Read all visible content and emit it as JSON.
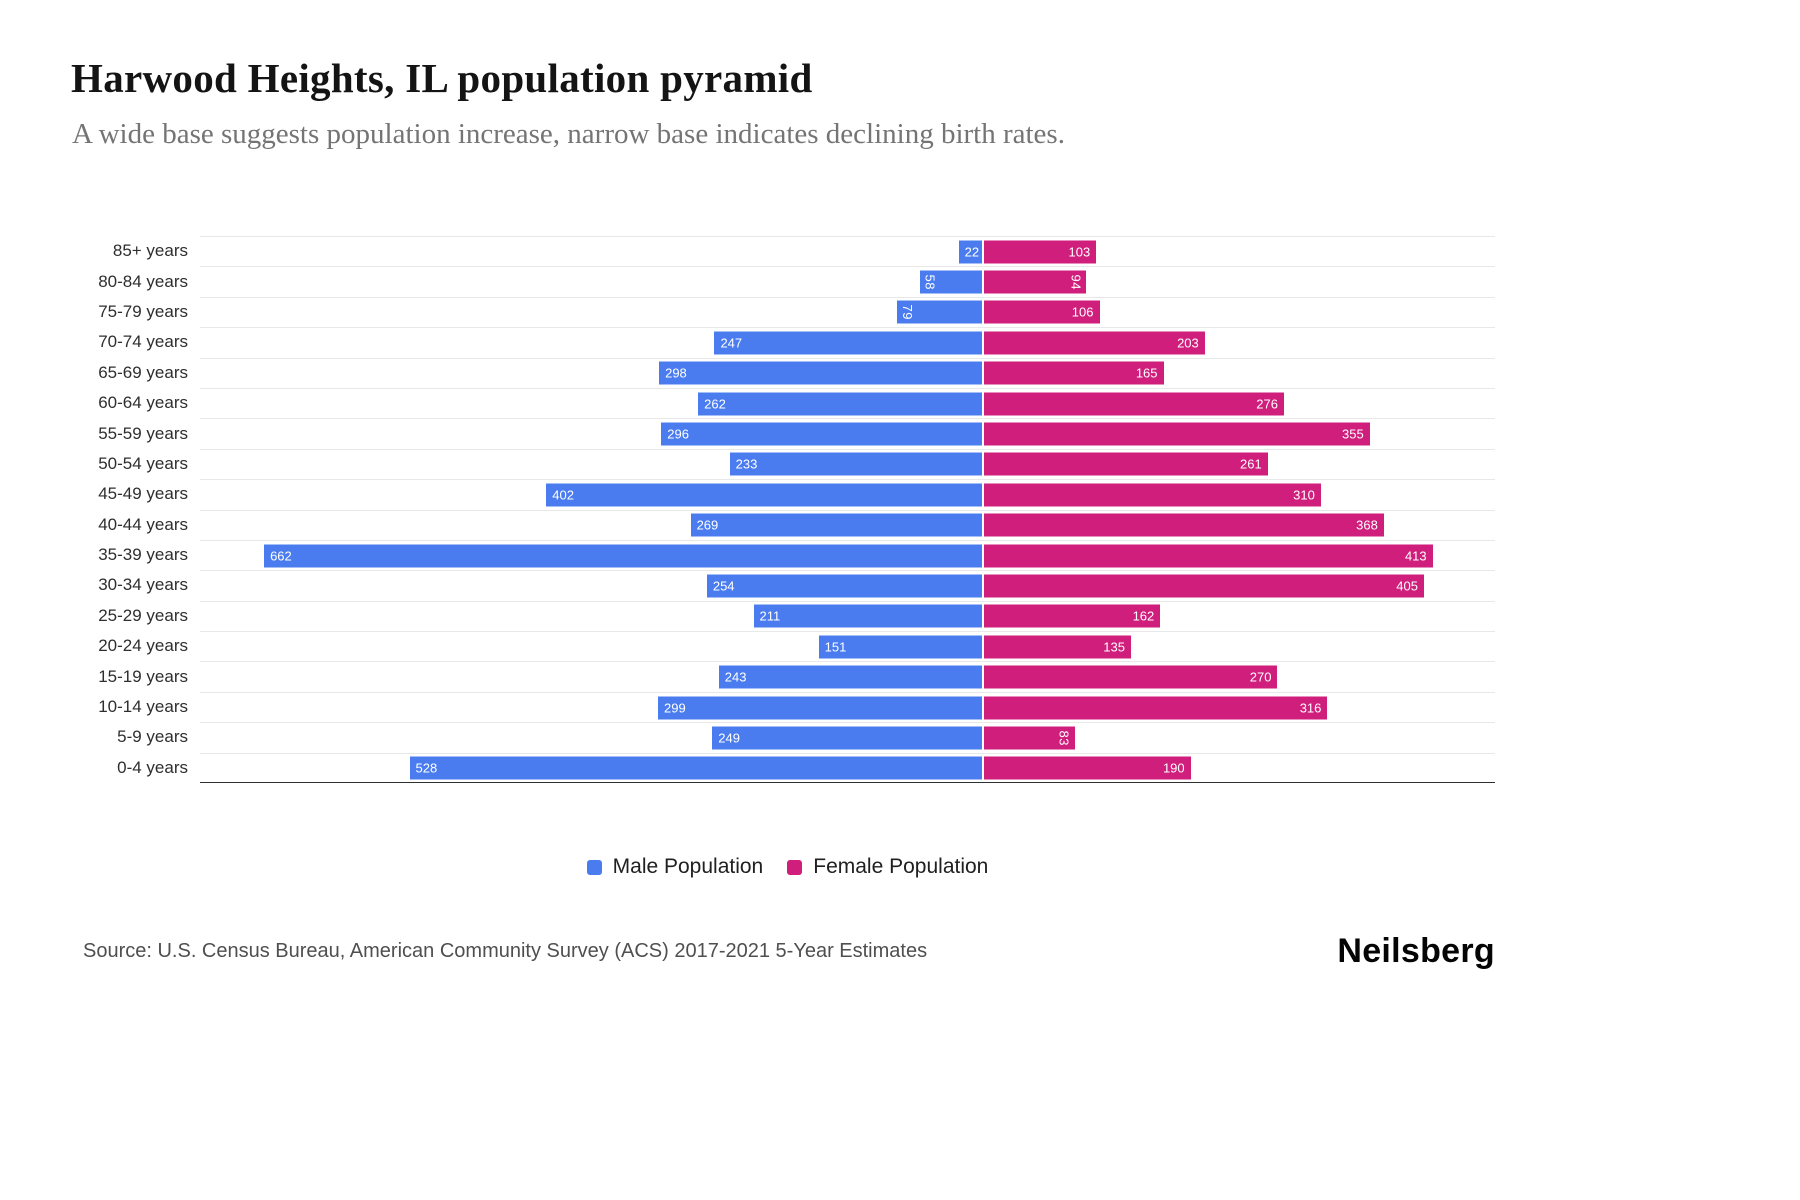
{
  "header": {
    "title": "Harwood Heights, IL population pyramid",
    "subtitle": "A wide base suggests population increase, narrow base indicates declining birth rates."
  },
  "chart_data": {
    "type": "bar",
    "variant": "population-pyramid",
    "orientation": "horizontal",
    "grid": true,
    "legend_position": "bottom",
    "title": "Harwood Heights, IL population pyramid",
    "xlabel": "",
    "ylabel": "",
    "categories": [
      "85+ years",
      "80-84 years",
      "75-79 years",
      "70-74 years",
      "65-69 years",
      "60-64 years",
      "55-59 years",
      "50-54 years",
      "45-49 years",
      "40-44 years",
      "35-39 years",
      "30-34 years",
      "25-29 years",
      "20-24 years",
      "15-19 years",
      "10-14 years",
      "5-9 years",
      "0-4 years"
    ],
    "series": [
      {
        "name": "Male Population",
        "side": "left",
        "color": "#4a7cf0",
        "values": [
          22,
          58,
          79,
          247,
          298,
          262,
          296,
          233,
          402,
          269,
          662,
          254,
          211,
          151,
          243,
          299,
          249,
          528
        ],
        "label_rotated": [
          false,
          true,
          true,
          false,
          false,
          false,
          false,
          false,
          false,
          false,
          false,
          false,
          false,
          false,
          false,
          false,
          false,
          false
        ]
      },
      {
        "name": "Female Population",
        "side": "right",
        "color": "#d01e7c",
        "values": [
          103,
          94,
          106,
          203,
          165,
          276,
          355,
          261,
          310,
          368,
          413,
          405,
          162,
          135,
          270,
          316,
          83,
          190
        ],
        "label_rotated": [
          false,
          true,
          false,
          false,
          false,
          false,
          false,
          false,
          false,
          false,
          false,
          false,
          false,
          false,
          false,
          false,
          true,
          false
        ]
      }
    ],
    "axis": {
      "center_pct": 60.5,
      "pct_per_unit": 0.0838
    },
    "value_label_color": "#ffffff",
    "gridline_color": "#e8e8e8",
    "baseline_color": "#2f2f2f"
  },
  "legend": {
    "male_label": "Male Population",
    "female_label": "Female Population"
  },
  "footer": {
    "source": "Source: U.S. Census Bureau, American Community Survey (ACS) 2017-2021 5-Year Estimates",
    "brand": "Neilsberg"
  }
}
